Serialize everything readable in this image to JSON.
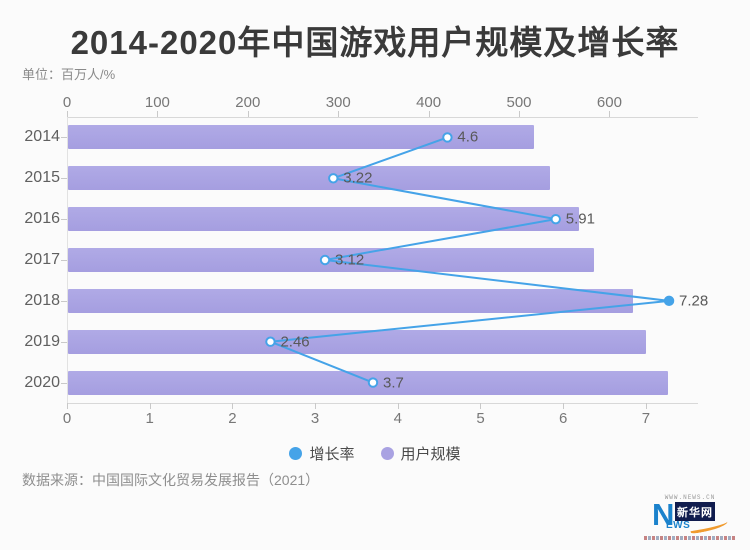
{
  "title": "2014-2020年中国游戏用户规模及增长率",
  "unit_label": "单位：百万人/%",
  "source_label": "数据来源：中国国际文化贸易发展报告（2021）",
  "colors": {
    "bar": "#a9a2e2",
    "line": "#45a3e8",
    "marker_fill": "#ffffff",
    "title_text": "#3a3a3a",
    "axis_text": "#777777",
    "background": "#fbfbfb"
  },
  "chart_data": {
    "type": "bar",
    "orientation": "horizontal",
    "title": "2014-2020年中国游戏用户规模及增长率",
    "unit": "百万人/%",
    "categories": [
      "2014",
      "2015",
      "2016",
      "2017",
      "2018",
      "2019",
      "2020"
    ],
    "series": [
      {
        "name": "增长率",
        "type": "line",
        "unit": "%",
        "axis": "bottom",
        "color": "#45a3e8",
        "values": [
          4.6,
          3.22,
          5.91,
          3.12,
          7.28,
          2.46,
          3.7
        ],
        "labels_shown": true
      },
      {
        "name": "用户规模",
        "type": "bar",
        "unit": "百万人",
        "axis": "top",
        "color": "#a9a2e2",
        "values": [
          517,
          534,
          566,
          583,
          626,
          640,
          665
        ],
        "labels_shown": false
      }
    ],
    "top_axis": {
      "ticks": [
        0,
        100,
        200,
        300,
        400,
        500,
        600
      ],
      "min": 0,
      "max": 698
    },
    "bottom_axis": {
      "ticks": [
        0,
        1,
        2,
        3,
        4,
        5,
        6,
        7
      ],
      "min": 0,
      "max": 7.63
    },
    "grid": false,
    "legend_position": "bottom-center"
  },
  "legend": {
    "items": [
      {
        "label": "增长率",
        "color": "#45a3e8"
      },
      {
        "label": "用户规模",
        "color": "#a9a2e2"
      }
    ]
  },
  "logo": {
    "top_text": "WWW.NEWS.CN",
    "letter_n": "N",
    "letters_ews": "EWS",
    "cn_name": "新华网"
  }
}
